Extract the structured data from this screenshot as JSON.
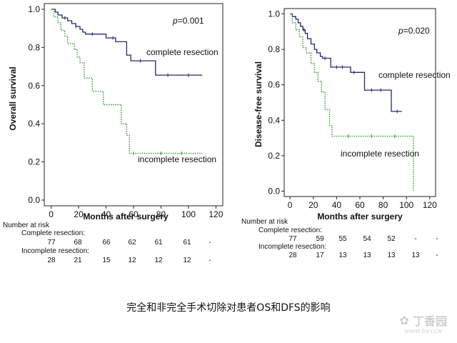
{
  "chart_data": [
    {
      "type": "line",
      "ylabel": "Overall survival",
      "xlabel": "Months after surgery",
      "xlim": [
        -5,
        125
      ],
      "ylim": [
        -0.03,
        1.03
      ],
      "xticks": [
        0,
        20,
        40,
        60,
        80,
        100,
        120
      ],
      "yticks": [
        "0.0",
        "0.2",
        "0.4",
        "0.6",
        "0.8",
        "1.0"
      ],
      "ytick_values": [
        0,
        0.2,
        0.4,
        0.6,
        0.8,
        1.0
      ],
      "p_value": "=0.001",
      "series": [
        {
          "name": "complete resection",
          "color": "#1f2a6e",
          "style": "solid",
          "points": [
            [
              0,
              1.0
            ],
            [
              3,
              1.0
            ],
            [
              3,
              0.985
            ],
            [
              5,
              0.985
            ],
            [
              5,
              0.97
            ],
            [
              8,
              0.97
            ],
            [
              8,
              0.955
            ],
            [
              12,
              0.955
            ],
            [
              12,
              0.94
            ],
            [
              15,
              0.94
            ],
            [
              15,
              0.925
            ],
            [
              18,
              0.925
            ],
            [
              18,
              0.91
            ],
            [
              21,
              0.91
            ],
            [
              21,
              0.895
            ],
            [
              23,
              0.895
            ],
            [
              23,
              0.88
            ],
            [
              25,
              0.88
            ],
            [
              25,
              0.87
            ],
            [
              40,
              0.87
            ],
            [
              40,
              0.85
            ],
            [
              47,
              0.85
            ],
            [
              47,
              0.83
            ],
            [
              55,
              0.83
            ],
            [
              55,
              0.76
            ],
            [
              58,
              0.76
            ],
            [
              58,
              0.73
            ],
            [
              76,
              0.73
            ],
            [
              76,
              0.655
            ],
            [
              110,
              0.655
            ]
          ],
          "censor_x": [
            10,
            18,
            30,
            45,
            65,
            85,
            100
          ]
        },
        {
          "name": "incomplete resection",
          "color": "#2e9b2e",
          "style": "dotted",
          "points": [
            [
              0,
              1.0
            ],
            [
              2,
              1.0
            ],
            [
              2,
              0.96
            ],
            [
              5,
              0.96
            ],
            [
              5,
              0.93
            ],
            [
              7,
              0.93
            ],
            [
              7,
              0.89
            ],
            [
              10,
              0.89
            ],
            [
              10,
              0.86
            ],
            [
              12,
              0.86
            ],
            [
              12,
              0.82
            ],
            [
              17,
              0.82
            ],
            [
              17,
              0.79
            ],
            [
              19,
              0.79
            ],
            [
              19,
              0.75
            ],
            [
              21,
              0.75
            ],
            [
              21,
              0.72
            ],
            [
              24,
              0.72
            ],
            [
              24,
              0.64
            ],
            [
              30,
              0.64
            ],
            [
              30,
              0.57
            ],
            [
              38,
              0.57
            ],
            [
              38,
              0.5
            ],
            [
              51,
              0.5
            ],
            [
              51,
              0.4
            ],
            [
              55,
              0.4
            ],
            [
              55,
              0.34
            ],
            [
              57,
              0.34
            ],
            [
              57,
              0.245
            ],
            [
              110,
              0.245
            ]
          ],
          "censor_x": [
            60,
            80,
            95
          ]
        }
      ],
      "annotations": [
        "complete resection",
        "incomplete resection"
      ],
      "risk_table": {
        "title": "Number at risk",
        "rows": [
          {
            "label": "Complete resection:",
            "values": [
              "77",
              "68",
              "66",
              "62",
              "61",
              "61",
              "-"
            ]
          },
          {
            "label": "Incomplete resection:",
            "values": [
              "28",
              "21",
              "15",
              "12",
              "12",
              "12",
              "-"
            ]
          }
        ]
      }
    },
    {
      "type": "line",
      "ylabel": "Disease-free survival",
      "xlabel": "Months after surgery",
      "xlim": [
        -5,
        125
      ],
      "ylim": [
        -0.03,
        1.03
      ],
      "xticks": [
        0,
        20,
        40,
        60,
        80,
        100,
        120
      ],
      "yticks": [
        "0.0",
        "0.2",
        "0.4",
        "0.6",
        "0.8",
        "1.0"
      ],
      "ytick_values": [
        0,
        0.2,
        0.4,
        0.6,
        0.8,
        1.0
      ],
      "p_value": "=0.020",
      "series": [
        {
          "name": "complete resection",
          "color": "#1f2a6e",
          "style": "solid",
          "points": [
            [
              0,
              1.0
            ],
            [
              2,
              1.0
            ],
            [
              2,
              0.985
            ],
            [
              5,
              0.985
            ],
            [
              5,
              0.97
            ],
            [
              7,
              0.97
            ],
            [
              7,
              0.95
            ],
            [
              9,
              0.95
            ],
            [
              9,
              0.93
            ],
            [
              11,
              0.93
            ],
            [
              11,
              0.91
            ],
            [
              13,
              0.91
            ],
            [
              13,
              0.89
            ],
            [
              15,
              0.89
            ],
            [
              15,
              0.86
            ],
            [
              18,
              0.86
            ],
            [
              18,
              0.83
            ],
            [
              21,
              0.83
            ],
            [
              21,
              0.8
            ],
            [
              23,
              0.8
            ],
            [
              23,
              0.78
            ],
            [
              26,
              0.78
            ],
            [
              26,
              0.76
            ],
            [
              28,
              0.76
            ],
            [
              28,
              0.75
            ],
            [
              35,
              0.75
            ],
            [
              35,
              0.7
            ],
            [
              52,
              0.7
            ],
            [
              52,
              0.67
            ],
            [
              64,
              0.67
            ],
            [
              64,
              0.57
            ],
            [
              87,
              0.57
            ],
            [
              87,
              0.45
            ],
            [
              96,
              0.45
            ]
          ],
          "censor_x": [
            12,
            30,
            40,
            45,
            55,
            70,
            78,
            92
          ]
        },
        {
          "name": "incomplete resection",
          "color": "#2e9b2e",
          "style": "dotted",
          "points": [
            [
              0,
              1.0
            ],
            [
              2,
              1.0
            ],
            [
              2,
              0.95
            ],
            [
              5,
              0.95
            ],
            [
              5,
              0.91
            ],
            [
              8,
              0.91
            ],
            [
              8,
              0.87
            ],
            [
              11,
              0.87
            ],
            [
              11,
              0.81
            ],
            [
              14,
              0.81
            ],
            [
              14,
              0.78
            ],
            [
              18,
              0.78
            ],
            [
              18,
              0.72
            ],
            [
              21,
              0.72
            ],
            [
              21,
              0.67
            ],
            [
              24,
              0.67
            ],
            [
              24,
              0.62
            ],
            [
              27,
              0.62
            ],
            [
              27,
              0.56
            ],
            [
              30,
              0.56
            ],
            [
              30,
              0.46
            ],
            [
              34,
              0.46
            ],
            [
              34,
              0.37
            ],
            [
              36,
              0.37
            ],
            [
              36,
              0.31
            ],
            [
              106,
              0.31
            ],
            [
              106,
              0.0
            ]
          ],
          "censor_x": [
            50,
            70,
            90
          ]
        }
      ],
      "annotations": [
        "complete resection",
        "incomplete resection"
      ],
      "risk_table": {
        "title": "Number at risk",
        "rows": [
          {
            "label": "Complete resection:",
            "values": [
              "77",
              "59",
              "55",
              "54",
              "52",
              "-",
              "-"
            ]
          },
          {
            "label": "Incomplete resection:",
            "values": [
              "28",
              "17",
              "13",
              "13",
              "13",
              "13",
              "-"
            ]
          }
        ]
      }
    }
  ],
  "caption": "完全和非完全手术切除对患者OS和DFS的影响",
  "watermark": {
    "brand": "丁香园",
    "url": "WWW.DXY.CN"
  }
}
